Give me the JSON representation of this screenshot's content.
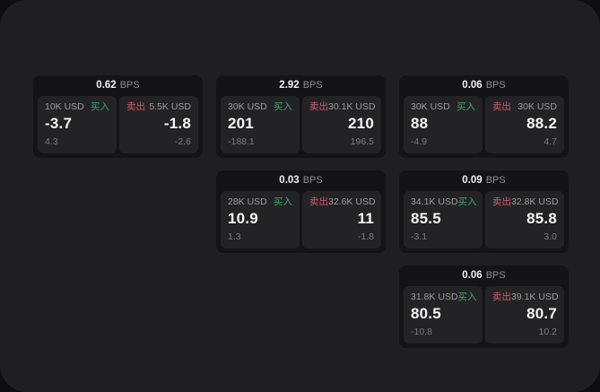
{
  "labels": {
    "bps_unit": "BPS",
    "buy": "买入",
    "sell": "卖出"
  },
  "colors": {
    "buy_green": "#3aa86b",
    "sell_red": "#d15a6b",
    "window_bg": "#1f1f21",
    "card_bg": "#141416",
    "panel_bg": "#232325"
  },
  "cards": [
    {
      "spread_bps": "0.62",
      "grid": {
        "row": 1,
        "col": 1
      },
      "buy": {
        "size": "10K USD",
        "price": "-3.7",
        "change": "4.3"
      },
      "sell": {
        "size": "5.5K USD",
        "price": "-1.8",
        "change": "-2.6"
      }
    },
    {
      "spread_bps": "2.92",
      "grid": {
        "row": 1,
        "col": 2
      },
      "buy": {
        "size": "30K USD",
        "price": "201",
        "change": "-188.1"
      },
      "sell": {
        "size": "30.1K USD",
        "price": "210",
        "change": "196.5"
      }
    },
    {
      "spread_bps": "0.06",
      "grid": {
        "row": 1,
        "col": 3
      },
      "buy": {
        "size": "30K USD",
        "price": "88",
        "change": "-4.9"
      },
      "sell": {
        "size": "30K USD",
        "price": "88.2",
        "change": "4.7"
      }
    },
    {
      "spread_bps": "0.03",
      "grid": {
        "row": 2,
        "col": 2
      },
      "buy": {
        "size": "28K USD",
        "price": "10.9",
        "change": "1.3"
      },
      "sell": {
        "size": "32.6K USD",
        "price": "11",
        "change": "-1.8"
      }
    },
    {
      "spread_bps": "0.09",
      "grid": {
        "row": 2,
        "col": 3
      },
      "buy": {
        "size": "34.1K USD",
        "price": "85.5",
        "change": "-3.1"
      },
      "sell": {
        "size": "32.8K USD",
        "price": "85.8",
        "change": "3.0"
      }
    },
    {
      "spread_bps": "0.06",
      "grid": {
        "row": 3,
        "col": 3
      },
      "buy": {
        "size": "31.8K USD",
        "price": "80.5",
        "change": "-10.8"
      },
      "sell": {
        "size": "39.1K USD",
        "price": "80.7",
        "change": "10.2"
      }
    }
  ]
}
